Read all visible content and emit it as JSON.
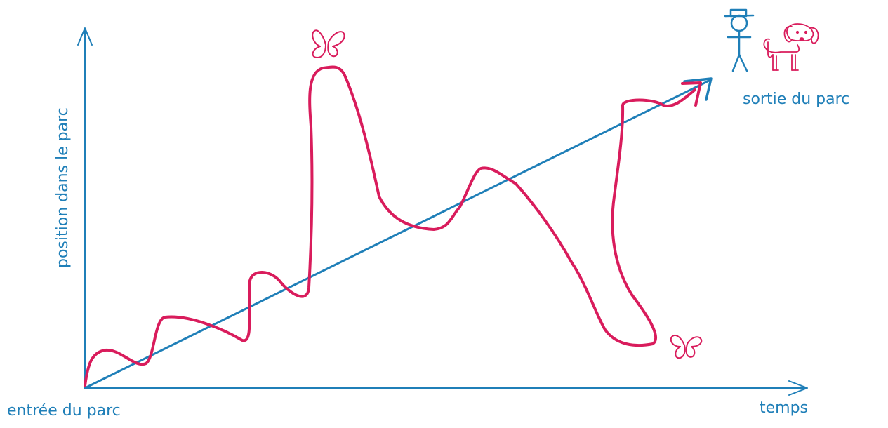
{
  "labels": {
    "y_axis": "position dans le parc",
    "x_axis": "temps",
    "origin": "entrée du parc",
    "destination": "sortie du parc"
  },
  "colors": {
    "axis": "#1f7fb8",
    "path": "#d91c5c",
    "straight_line": "#1f7fb8",
    "person": "#1f7fb8",
    "dog": "#d91c5c",
    "butterfly": "#d91c5c"
  },
  "figures": {
    "person": "stick-figure-with-hat",
    "dog": "dog-drawing",
    "butterflies": [
      "butterfly-icon",
      "butterfly-icon"
    ]
  }
}
